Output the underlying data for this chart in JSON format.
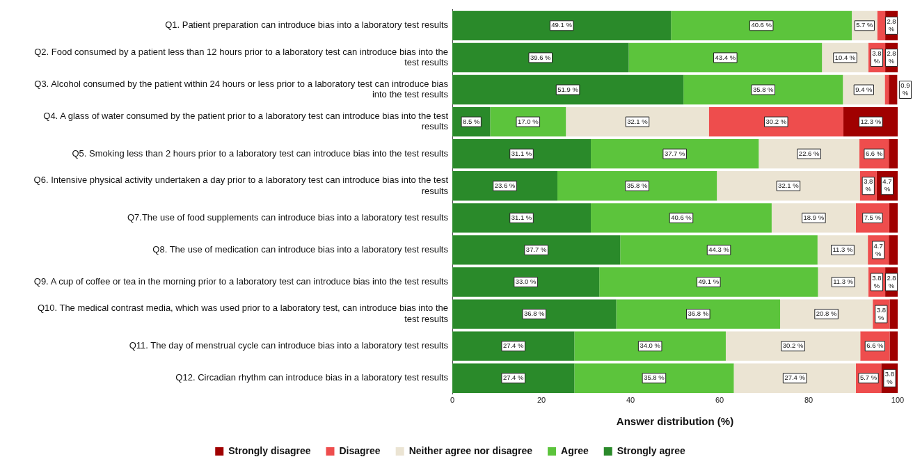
{
  "chart_data": {
    "type": "bar",
    "orientation": "horizontal",
    "stacked": true,
    "xlabel": "Answer distribution (%)",
    "xlim": [
      0,
      100
    ],
    "xticks": [
      0,
      20,
      40,
      60,
      80,
      100
    ],
    "grid": false,
    "legend": "bottom",
    "categories": [
      "Q1. Patient preparation can introduce bias into a laboratory test results",
      "Q2. Food consumed by a patient less than 12 hours prior to a laboratory test can introduce bias into the test results",
      "Q3. Alcohol consumed by the patient within 24 hours or less prior to a laboratory test can introduce bias into the test results",
      "Q4. A glass of water consumed by the patient prior to a laboratory test can introduce bias into the test results",
      "Q5. Smoking less than 2 hours prior to a laboratory test can introduce bias into the test results",
      "Q6. Intensive physical activity undertaken a day prior to a laboratory test can introduce bias into the test results",
      "Q7.The use of food supplements can introduce bias into a laboratory test results",
      "Q8. The use of medication can introduce bias into a laboratory test results",
      "Q9. A cup of coffee or tea in the morning prior to a laboratory test can introduce bias into the test results",
      "Q10. The medical contrast media, which was used prior to a laboratory test, can introduce bias into the test results",
      "Q11. The day of menstrual cycle can introduce bias into a laboratory test results",
      "Q12. Circadian rhythm can introduce bias in a laboratory test results"
    ],
    "series": [
      {
        "name": "Strongly agree",
        "color": "#2a8a2a",
        "values": [
          49.1,
          39.6,
          51.9,
          8.5,
          31.1,
          23.6,
          31.1,
          37.7,
          33.0,
          36.8,
          27.4,
          27.4
        ],
        "value_labels": [
          "49.1 %",
          "39.6 %",
          "51.9 %",
          "8.5 %",
          "31.1 %",
          "23.6 %",
          "31.1 %",
          "37.7 %",
          "33.0 %",
          "36.8 %",
          "27.4 %",
          "27.4 %"
        ]
      },
      {
        "name": "Agree",
        "color": "#5cc43c",
        "values": [
          40.6,
          43.4,
          35.8,
          17.0,
          37.7,
          35.8,
          40.6,
          44.3,
          49.1,
          36.8,
          34.0,
          35.8
        ],
        "value_labels": [
          "40.6 %",
          "43.4 %",
          "35.8 %",
          "17.0 %",
          "37.7 %",
          "35.8 %",
          "40.6 %",
          "44.3 %",
          "49.1 %",
          "36.8 %",
          "34.0 %",
          "35.8 %"
        ]
      },
      {
        "name": "Neither agree nor disagree",
        "color": "#ebe4d3",
        "values": [
          5.7,
          10.4,
          9.4,
          32.1,
          22.6,
          32.1,
          18.9,
          11.3,
          11.3,
          20.8,
          30.2,
          27.4
        ],
        "value_labels": [
          "5.7 %",
          "10.4 %",
          "9.4 %",
          "32.1 %",
          "22.6 %",
          "32.1 %",
          "18.9 %",
          "11.3 %",
          "11.3 %",
          "20.8 %",
          "30.2 %",
          "27.4 %"
        ]
      },
      {
        "name": "Disagree",
        "color": "#ee4d4d",
        "values": [
          1.8,
          3.8,
          0.9,
          30.2,
          6.6,
          3.8,
          7.5,
          4.7,
          3.8,
          3.8,
          6.6,
          5.7
        ],
        "value_labels": [
          null,
          "3.8 %",
          "0.9 %",
          "30.2 %",
          "6.6 %",
          "3.8 %",
          "7.5 %",
          "4.7 %",
          "3.8 %",
          "3.8 %",
          "6.6 %",
          "5.7 %"
        ]
      },
      {
        "name": "Strongly disagree",
        "color": "#a00000",
        "values": [
          2.8,
          2.8,
          1.9,
          12.3,
          2.0,
          4.7,
          1.9,
          2.0,
          2.8,
          1.8,
          1.8,
          3.8
        ],
        "value_labels": [
          "2.8 %",
          "2.8 %",
          null,
          "12.3 %",
          null,
          "4.7 %",
          null,
          null,
          "2.8 %",
          null,
          null,
          "3.8 %"
        ]
      }
    ]
  }
}
